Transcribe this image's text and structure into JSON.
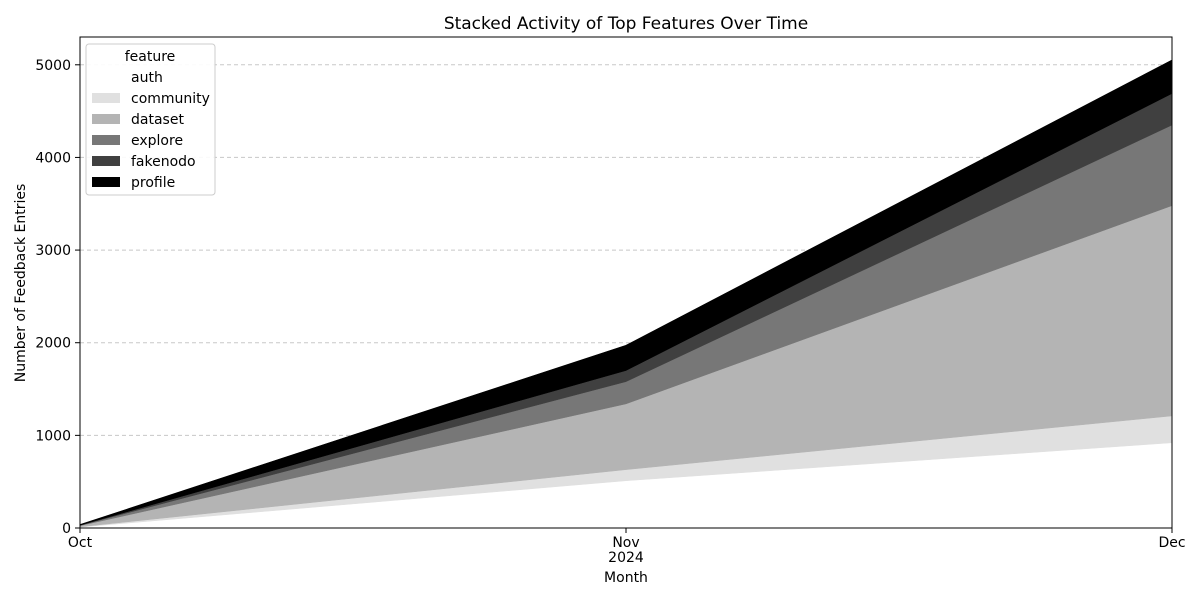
{
  "chart_data": {
    "type": "area",
    "stacked": true,
    "title": "Stacked Activity of Top Features Over Time",
    "xlabel": "Month",
    "ylabel": "Number of Feedback Entries",
    "x_ticks": [
      {
        "label": "Oct",
        "sublabel": ""
      },
      {
        "label": "Nov",
        "sublabel": "2024"
      },
      {
        "label": "Dec",
        "sublabel": ""
      }
    ],
    "x": [
      "2024-10",
      "2024-11",
      "2024-12"
    ],
    "ylim": [
      0,
      5300
    ],
    "yticks": [
      0,
      1000,
      2000,
      3000,
      4000,
      5000
    ],
    "grid": "y-dashed",
    "legend": {
      "title": "feature",
      "position": "top-left"
    },
    "series": [
      {
        "name": "auth",
        "color": "#ffffff",
        "values": [
          10,
          510,
          920
        ]
      },
      {
        "name": "community",
        "color": "#e0e0e0",
        "values": [
          3,
          120,
          290
        ]
      },
      {
        "name": "dataset",
        "color": "#b4b4b4",
        "values": [
          12,
          710,
          2270
        ]
      },
      {
        "name": "explore",
        "color": "#777777",
        "values": [
          4,
          240,
          870
        ]
      },
      {
        "name": "fakenodo",
        "color": "#404040",
        "values": [
          2,
          120,
          340
        ]
      },
      {
        "name": "profile",
        "color": "#000000",
        "values": [
          4,
          270,
          360
        ]
      }
    ]
  }
}
